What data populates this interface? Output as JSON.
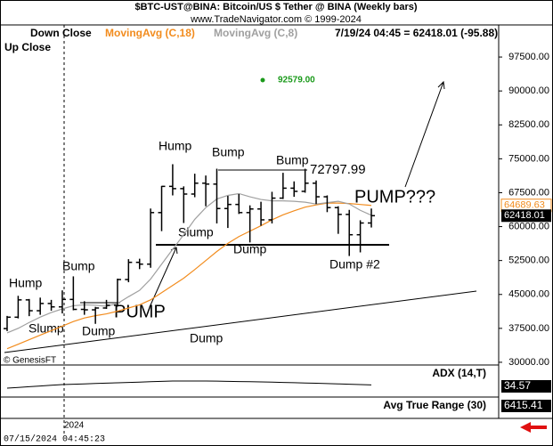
{
  "chart_data": {
    "type": "ohlc",
    "title": "$BTC-UST@BINA:  Bitcoin/US $ Tether @ BINA  (Weekly bars)",
    "subtitle": "www.TradeNavigator.com © 1999-2024",
    "legend": [
      "Down Close",
      "MovingAvg (C,18)",
      "MovingAvg (C,8)",
      "Up Close"
    ],
    "status": "7/19/24 04:45 = 62418.01 (-95.88)",
    "timestamp": "07/15/2024 04:45:23",
    "copyright": "© GenesisFT",
    "year_label": "2024",
    "ylim": [
      29400,
      104600
    ],
    "yticks": [
      {
        "value": 30000,
        "label": "30000.00"
      },
      {
        "value": 37500,
        "label": "37500.00"
      },
      {
        "value": 45000,
        "label": "45000.00"
      },
      {
        "value": 52500,
        "label": "52500.00"
      },
      {
        "value": 60000,
        "label": "60000.00"
      },
      {
        "value": 67500,
        "label": "67500.00"
      },
      {
        "value": 75000,
        "label": "75000.00"
      },
      {
        "value": 82500,
        "label": "82500.00"
      },
      {
        "value": 90000,
        "label": "90000.00"
      },
      {
        "value": 97500,
        "label": "97500.00"
      }
    ],
    "open": [
      37450,
      39970,
      43800,
      41400,
      43000,
      42250,
      43900,
      41700,
      41600,
      42000,
      42600,
      48300,
      52100,
      51700,
      63100,
      68900,
      68400,
      67200,
      69600,
      69400,
      64000,
      64900,
      63100,
      63900,
      61500,
      66300,
      68500,
      67800,
      69600,
      66600,
      64200,
      62700,
      58200,
      60800
    ],
    "high": [
      40250,
      44700,
      44000,
      44300,
      43800,
      45900,
      49000,
      43500,
      42250,
      43800,
      48500,
      52800,
      52900,
      64000,
      69000,
      73800,
      68900,
      71700,
      71300,
      72800,
      66800,
      67200,
      64700,
      65500,
      67700,
      71900,
      70000,
      72797.99,
      70200,
      66900,
      64500,
      63700,
      61400,
      64000
    ],
    "low": [
      36900,
      39700,
      40200,
      40500,
      41400,
      40800,
      41500,
      40500,
      38500,
      41800,
      42300,
      47700,
      50600,
      50900,
      59000,
      66900,
      60800,
      66500,
      64500,
      60700,
      59700,
      62800,
      56500,
      60200,
      60700,
      66100,
      66600,
      67500,
      65000,
      63200,
      58400,
      53500,
      54300,
      59800
    ],
    "close": [
      39970,
      43800,
      41400,
      43000,
      42250,
      43900,
      41700,
      41600,
      42000,
      42600,
      48300,
      52100,
      51700,
      63100,
      68900,
      68400,
      67200,
      69600,
      69400,
      64000,
      64900,
      63100,
      63900,
      61500,
      66300,
      68500,
      67800,
      69600,
      66600,
      64200,
      62700,
      58200,
      60800,
      62418.01
    ],
    "close_label": "62418.01",
    "series": [
      {
        "name": "MovingAvg (C,18)",
        "color": "#f28c1e",
        "values": [
          33000,
          34000,
          35000,
          36000,
          37000,
          38000,
          39000,
          39800,
          40300,
          40700,
          41300,
          42000,
          42700,
          43800,
          45400,
          47000,
          48600,
          50500,
          52500,
          54500,
          56300,
          57800,
          59000,
          60200,
          61500,
          62600,
          63500,
          64300,
          64800,
          65200,
          65200,
          65100,
          64900,
          64689.63
        ],
        "last_label": "64689.63"
      },
      {
        "name": "MovingAvg (C,8)",
        "color": "#a0a0a0",
        "values": [
          36500,
          37500,
          38800,
          40000,
          41000,
          41800,
          42500,
          42700,
          42600,
          42400,
          43000,
          44500,
          45900,
          48400,
          51700,
          55000,
          58200,
          61600,
          64200,
          66100,
          66900,
          67300,
          66600,
          66000,
          65700,
          65700,
          65600,
          65400,
          65000,
          65300,
          65600,
          65000,
          63600,
          62500
        ]
      }
    ],
    "annotations": [
      "Hump",
      "Slump",
      "Dump",
      "Bump",
      "PUMP",
      "Hump",
      "Slump",
      "Bump",
      "Dump",
      "Bump",
      "72797.99",
      "PUMP???",
      "Dump #2",
      "Dump",
      "92579.00"
    ],
    "adx": {
      "name": "ADX (14,T)",
      "ylim": [
        20,
        60
      ],
      "values": [
        30,
        31,
        32,
        33,
        34,
        35,
        35.5,
        36,
        36.5,
        37,
        37.5,
        38,
        38.5,
        39,
        39.5,
        40,
        40,
        40,
        40,
        39.8,
        39.5,
        39.2,
        39,
        38.7,
        38.4,
        38,
        37.6,
        37.2,
        36.8,
        36.4,
        36,
        35.5,
        35,
        34.57
      ],
      "last_label": "34.57"
    },
    "atr": {
      "name": "Avg True Range (30)",
      "last_label": "6415.41"
    }
  }
}
